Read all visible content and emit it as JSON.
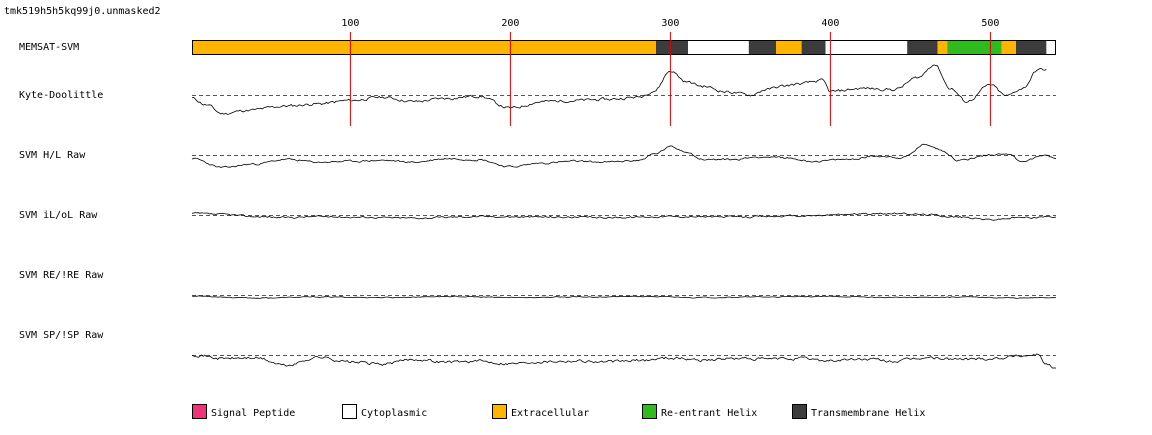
{
  "title": "tmk519h5h5kq99j0.unmasked2",
  "chart_data": {
    "type": "line",
    "x_range": [
      1,
      541
    ],
    "x_ticks": [
      100,
      200,
      300,
      400,
      500
    ],
    "track_labels": {
      "memsat": "MEMSAT-SVM",
      "kd": "Kyte-Doolittle",
      "hl": "SVM H/L Raw",
      "ilol": "SVM iL/oL Raw",
      "re": "SVM RE/!RE Raw",
      "sp": "SVM SP/!SP Raw"
    },
    "topology": [
      {
        "start": 1,
        "end": 291,
        "type": "Extracellular"
      },
      {
        "start": 291,
        "end": 311,
        "type": "Transmembrane Helix"
      },
      {
        "start": 311,
        "end": 349,
        "type": "Cytoplasmic"
      },
      {
        "start": 349,
        "end": 366,
        "type": "Transmembrane Helix"
      },
      {
        "start": 366,
        "end": 382,
        "type": "Extracellular"
      },
      {
        "start": 382,
        "end": 397,
        "type": "Transmembrane Helix"
      },
      {
        "start": 397,
        "end": 448,
        "type": "Cytoplasmic"
      },
      {
        "start": 448,
        "end": 467,
        "type": "Transmembrane Helix"
      },
      {
        "start": 467,
        "end": 473,
        "type": "Extracellular"
      },
      {
        "start": 473,
        "end": 507,
        "type": "Re-entrant Helix"
      },
      {
        "start": 507,
        "end": 516,
        "type": "Extracellular"
      },
      {
        "start": 516,
        "end": 535,
        "type": "Transmembrane Helix"
      },
      {
        "start": 535,
        "end": 541,
        "type": "Cytoplasmic"
      }
    ],
    "series": [
      {
        "name": "Kyte-Doolittle",
        "key": "kd",
        "seed": 11,
        "noise": 0.22,
        "profile": [
          [
            1,
            -0.3
          ],
          [
            10,
            -0.9
          ],
          [
            20,
            -1.7
          ],
          [
            35,
            -1.4
          ],
          [
            60,
            -1.0
          ],
          [
            80,
            -0.8
          ],
          [
            100,
            -0.5
          ],
          [
            120,
            -0.2
          ],
          [
            140,
            -0.6
          ],
          [
            160,
            -0.3
          ],
          [
            180,
            -0.1
          ],
          [
            200,
            -1.2
          ],
          [
            220,
            -0.6
          ],
          [
            240,
            -0.5
          ],
          [
            260,
            -0.4
          ],
          [
            280,
            -0.2
          ],
          [
            290,
            0.4
          ],
          [
            300,
            2.2
          ],
          [
            310,
            1.2
          ],
          [
            320,
            0.8
          ],
          [
            335,
            0.3
          ],
          [
            350,
            0.0
          ],
          [
            360,
            0.5
          ],
          [
            370,
            0.8
          ],
          [
            380,
            1.0
          ],
          [
            395,
            1.3
          ],
          [
            400,
            0.3
          ],
          [
            420,
            0.6
          ],
          [
            440,
            0.5
          ],
          [
            455,
            1.6
          ],
          [
            465,
            2.8
          ],
          [
            475,
            0.6
          ],
          [
            485,
            -0.6
          ],
          [
            500,
            0.9
          ],
          [
            510,
            -0.1
          ],
          [
            520,
            0.6
          ],
          [
            530,
            2.3
          ],
          [
            535,
            2.3
          ]
        ]
      },
      {
        "name": "SVM H/L Raw",
        "key": "hl",
        "seed": 23,
        "noise": 0.18,
        "profile": [
          [
            1,
            -0.4
          ],
          [
            20,
            -1.4
          ],
          [
            40,
            -1.0
          ],
          [
            60,
            -0.5
          ],
          [
            80,
            -0.8
          ],
          [
            100,
            -0.7
          ],
          [
            120,
            -0.6
          ],
          [
            140,
            -0.8
          ],
          [
            160,
            -0.4
          ],
          [
            180,
            -0.5
          ],
          [
            200,
            -1.3
          ],
          [
            220,
            -0.9
          ],
          [
            240,
            -0.7
          ],
          [
            260,
            -0.8
          ],
          [
            280,
            -0.6
          ],
          [
            290,
            0.1
          ],
          [
            300,
            0.9
          ],
          [
            310,
            0.4
          ],
          [
            320,
            -0.5
          ],
          [
            340,
            -0.5
          ],
          [
            355,
            -0.2
          ],
          [
            370,
            -0.3
          ],
          [
            390,
            -0.7
          ],
          [
            410,
            -0.5
          ],
          [
            430,
            -0.1
          ],
          [
            445,
            -0.3
          ],
          [
            460,
            1.2
          ],
          [
            470,
            0.5
          ],
          [
            480,
            -0.6
          ],
          [
            500,
            0.0
          ],
          [
            510,
            0.2
          ],
          [
            520,
            -0.7
          ],
          [
            535,
            0.0
          ],
          [
            541,
            -0.4
          ]
        ]
      },
      {
        "name": "SVM iL/oL Raw",
        "key": "ilol",
        "seed": 37,
        "noise": 0.3,
        "profile": [
          [
            1,
            0.3
          ],
          [
            20,
            0.1
          ],
          [
            40,
            -0.3
          ],
          [
            60,
            -0.5
          ],
          [
            80,
            -0.3
          ],
          [
            100,
            -0.4
          ],
          [
            140,
            -0.6
          ],
          [
            180,
            -0.3
          ],
          [
            220,
            -0.4
          ],
          [
            260,
            -0.5
          ],
          [
            300,
            -0.3
          ],
          [
            340,
            -0.4
          ],
          [
            380,
            -0.2
          ],
          [
            420,
            0.2
          ],
          [
            440,
            0.3
          ],
          [
            460,
            0.1
          ],
          [
            480,
            -0.4
          ],
          [
            500,
            -0.9
          ],
          [
            520,
            -0.5
          ],
          [
            541,
            -0.3
          ]
        ]
      },
      {
        "name": "SVM RE/!RE Raw",
        "key": "re",
        "seed": 53,
        "noise": 0.15,
        "profile": [
          [
            1,
            -0.2
          ],
          [
            40,
            -0.6
          ],
          [
            80,
            -0.4
          ],
          [
            120,
            -0.5
          ],
          [
            160,
            -0.3
          ],
          [
            200,
            -0.5
          ],
          [
            240,
            -0.4
          ],
          [
            280,
            -0.3
          ],
          [
            320,
            -0.5
          ],
          [
            360,
            -0.4
          ],
          [
            400,
            -0.3
          ],
          [
            440,
            -0.5
          ],
          [
            480,
            -0.4
          ],
          [
            520,
            -0.6
          ],
          [
            541,
            -0.5
          ]
        ]
      },
      {
        "name": "SVM SP/!SP Raw",
        "key": "sp",
        "seed": 71,
        "noise": 0.35,
        "profile": [
          [
            1,
            0.1
          ],
          [
            20,
            -0.5
          ],
          [
            40,
            -0.4
          ],
          [
            60,
            -1.5
          ],
          [
            80,
            -0.3
          ],
          [
            100,
            -1.0
          ],
          [
            120,
            -1.3
          ],
          [
            140,
            -0.6
          ],
          [
            160,
            -1.0
          ],
          [
            180,
            -0.9
          ],
          [
            200,
            -1.2
          ],
          [
            220,
            -0.9
          ],
          [
            240,
            -0.8
          ],
          [
            260,
            -1.0
          ],
          [
            280,
            -0.8
          ],
          [
            300,
            -0.4
          ],
          [
            320,
            -0.7
          ],
          [
            340,
            -0.5
          ],
          [
            360,
            -0.6
          ],
          [
            380,
            -0.5
          ],
          [
            400,
            -0.8
          ],
          [
            420,
            -0.6
          ],
          [
            440,
            -0.9
          ],
          [
            460,
            -0.4
          ],
          [
            480,
            -0.6
          ],
          [
            500,
            -0.5
          ],
          [
            520,
            -0.1
          ],
          [
            530,
            0.1
          ],
          [
            535,
            -1.3
          ],
          [
            541,
            -2.0
          ]
        ]
      }
    ],
    "legend": [
      {
        "label": "Signal Peptide",
        "color": "#f0327a"
      },
      {
        "label": "Cytoplasmic",
        "color": "#ffffff"
      },
      {
        "label": "Extracellular",
        "color": "#ffb400"
      },
      {
        "label": "Re-entrant Helix",
        "color": "#2fba1e"
      },
      {
        "label": "Transmembrane Helix",
        "color": "#3c3c3c"
      }
    ]
  }
}
